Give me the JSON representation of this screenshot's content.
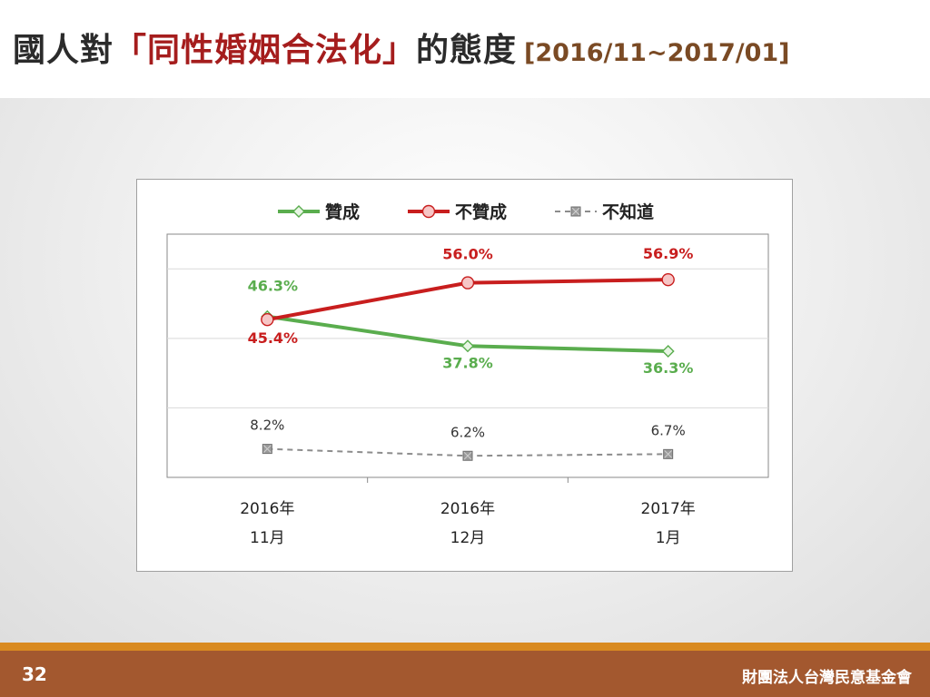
{
  "header": {
    "title_prefix": "國人對",
    "title_highlight": "「同性婚姻合法化」",
    "title_suffix": "的態度",
    "title_date": "[2016/11~2017/01]"
  },
  "footer": {
    "page_number": "32",
    "organization": "財團法人台灣民意基金會"
  },
  "colors": {
    "approve": "#5aad4e",
    "oppose": "#c81e1e",
    "unknown": "#8c8c8c",
    "footer_bg": "#a3582f",
    "footer_strip": "#d98a20"
  },
  "chart_data": {
    "type": "line",
    "categories": [
      "2016年 11月",
      "2016年 12月",
      "2017年 1月"
    ],
    "category_lines": [
      [
        "2016年",
        "11月"
      ],
      [
        "2016年",
        "12月"
      ],
      [
        "2017年",
        "1月"
      ]
    ],
    "legend_position": "top",
    "ylim": [
      0,
      70
    ],
    "grid": true,
    "series": [
      {
        "name": "贊成",
        "values": [
          46.3,
          37.8,
          36.3
        ],
        "labels": [
          "46.3%",
          "37.8%",
          "36.3%"
        ],
        "marker": "diamond",
        "line_style": "solid",
        "color": "#5aad4e"
      },
      {
        "name": "不贊成",
        "values": [
          45.4,
          56.0,
          56.9
        ],
        "labels": [
          "45.4%",
          "56.0%",
          "56.9%"
        ],
        "marker": "circle",
        "line_style": "solid",
        "color": "#c81e1e"
      },
      {
        "name": "不知道",
        "values": [
          8.2,
          6.2,
          6.7
        ],
        "labels": [
          "8.2%",
          "6.2%",
          "6.7%"
        ],
        "marker": "square-x",
        "line_style": "dashed",
        "color": "#8c8c8c"
      }
    ]
  }
}
